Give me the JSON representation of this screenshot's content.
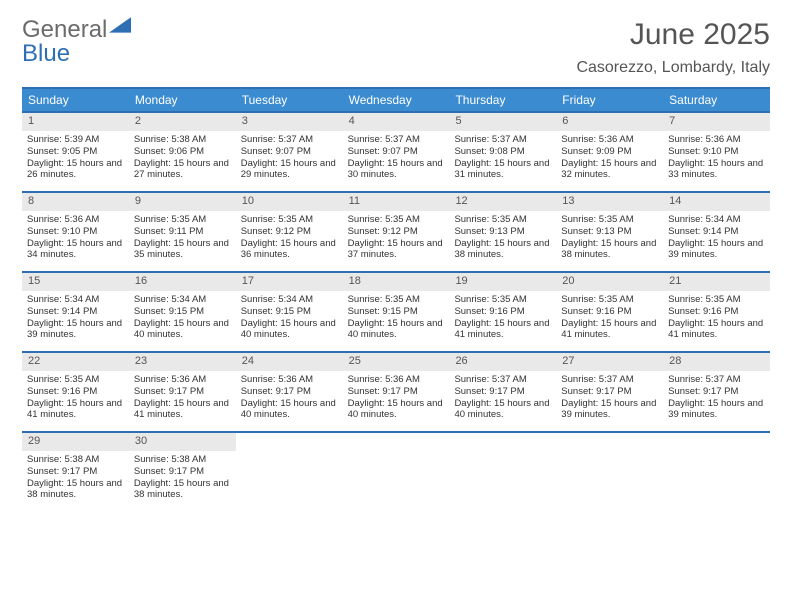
{
  "brand": {
    "word1": "General",
    "word2": "Blue"
  },
  "title": "June 2025",
  "location": "Casorezzo, Lombardy, Italy",
  "colors": {
    "accent": "#2e6fb4",
    "header_bg": "#3b8bd0",
    "header_fg": "#ffffff",
    "daynum_bg": "#e9e9e9",
    "text": "#333333",
    "brand_gray": "#6b6b6b"
  },
  "typography": {
    "title_fontsize": 30,
    "location_fontsize": 16,
    "weekday_fontsize": 12,
    "body_fontsize": 9.5
  },
  "weekday_labels": [
    "Sunday",
    "Monday",
    "Tuesday",
    "Wednesday",
    "Thursday",
    "Friday",
    "Saturday"
  ],
  "weeks": [
    [
      {
        "n": "1",
        "sr": "5:39 AM",
        "ss": "9:05 PM",
        "dl": "15 hours and 26 minutes."
      },
      {
        "n": "2",
        "sr": "5:38 AM",
        "ss": "9:06 PM",
        "dl": "15 hours and 27 minutes."
      },
      {
        "n": "3",
        "sr": "5:37 AM",
        "ss": "9:07 PM",
        "dl": "15 hours and 29 minutes."
      },
      {
        "n": "4",
        "sr": "5:37 AM",
        "ss": "9:07 PM",
        "dl": "15 hours and 30 minutes."
      },
      {
        "n": "5",
        "sr": "5:37 AM",
        "ss": "9:08 PM",
        "dl": "15 hours and 31 minutes."
      },
      {
        "n": "6",
        "sr": "5:36 AM",
        "ss": "9:09 PM",
        "dl": "15 hours and 32 minutes."
      },
      {
        "n": "7",
        "sr": "5:36 AM",
        "ss": "9:10 PM",
        "dl": "15 hours and 33 minutes."
      }
    ],
    [
      {
        "n": "8",
        "sr": "5:36 AM",
        "ss": "9:10 PM",
        "dl": "15 hours and 34 minutes."
      },
      {
        "n": "9",
        "sr": "5:35 AM",
        "ss": "9:11 PM",
        "dl": "15 hours and 35 minutes."
      },
      {
        "n": "10",
        "sr": "5:35 AM",
        "ss": "9:12 PM",
        "dl": "15 hours and 36 minutes."
      },
      {
        "n": "11",
        "sr": "5:35 AM",
        "ss": "9:12 PM",
        "dl": "15 hours and 37 minutes."
      },
      {
        "n": "12",
        "sr": "5:35 AM",
        "ss": "9:13 PM",
        "dl": "15 hours and 38 minutes."
      },
      {
        "n": "13",
        "sr": "5:35 AM",
        "ss": "9:13 PM",
        "dl": "15 hours and 38 minutes."
      },
      {
        "n": "14",
        "sr": "5:34 AM",
        "ss": "9:14 PM",
        "dl": "15 hours and 39 minutes."
      }
    ],
    [
      {
        "n": "15",
        "sr": "5:34 AM",
        "ss": "9:14 PM",
        "dl": "15 hours and 39 minutes."
      },
      {
        "n": "16",
        "sr": "5:34 AM",
        "ss": "9:15 PM",
        "dl": "15 hours and 40 minutes."
      },
      {
        "n": "17",
        "sr": "5:34 AM",
        "ss": "9:15 PM",
        "dl": "15 hours and 40 minutes."
      },
      {
        "n": "18",
        "sr": "5:35 AM",
        "ss": "9:15 PM",
        "dl": "15 hours and 40 minutes."
      },
      {
        "n": "19",
        "sr": "5:35 AM",
        "ss": "9:16 PM",
        "dl": "15 hours and 41 minutes."
      },
      {
        "n": "20",
        "sr": "5:35 AM",
        "ss": "9:16 PM",
        "dl": "15 hours and 41 minutes."
      },
      {
        "n": "21",
        "sr": "5:35 AM",
        "ss": "9:16 PM",
        "dl": "15 hours and 41 minutes."
      }
    ],
    [
      {
        "n": "22",
        "sr": "5:35 AM",
        "ss": "9:16 PM",
        "dl": "15 hours and 41 minutes."
      },
      {
        "n": "23",
        "sr": "5:36 AM",
        "ss": "9:17 PM",
        "dl": "15 hours and 41 minutes."
      },
      {
        "n": "24",
        "sr": "5:36 AM",
        "ss": "9:17 PM",
        "dl": "15 hours and 40 minutes."
      },
      {
        "n": "25",
        "sr": "5:36 AM",
        "ss": "9:17 PM",
        "dl": "15 hours and 40 minutes."
      },
      {
        "n": "26",
        "sr": "5:37 AM",
        "ss": "9:17 PM",
        "dl": "15 hours and 40 minutes."
      },
      {
        "n": "27",
        "sr": "5:37 AM",
        "ss": "9:17 PM",
        "dl": "15 hours and 39 minutes."
      },
      {
        "n": "28",
        "sr": "5:37 AM",
        "ss": "9:17 PM",
        "dl": "15 hours and 39 minutes."
      }
    ],
    [
      {
        "n": "29",
        "sr": "5:38 AM",
        "ss": "9:17 PM",
        "dl": "15 hours and 38 minutes."
      },
      {
        "n": "30",
        "sr": "5:38 AM",
        "ss": "9:17 PM",
        "dl": "15 hours and 38 minutes."
      },
      {
        "empty": true
      },
      {
        "empty": true
      },
      {
        "empty": true
      },
      {
        "empty": true
      },
      {
        "empty": true
      }
    ]
  ],
  "day_labels": {
    "sunrise": "Sunrise: ",
    "sunset": "Sunset: ",
    "daylight": "Daylight: "
  }
}
